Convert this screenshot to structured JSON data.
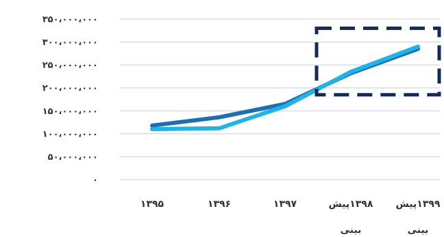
{
  "chart_data": {
    "type": "line",
    "title": "",
    "xlabel": "",
    "ylabel": "",
    "categories": [
      "۱۳۹۵",
      "۱۳۹۶",
      "۱۳۹۷",
      "۱۳۹۸پیش بینی",
      "۱۳۹۹پیش بینی"
    ],
    "category_lines": [
      [
        "۱۳۹۵"
      ],
      [
        "۱۳۹۶"
      ],
      [
        "۱۳۹۷"
      ],
      [
        "۱۳۹۸پیش",
        "بینی"
      ],
      [
        "۱۳۹۹پیش",
        "بینی"
      ]
    ],
    "ylim": [
      0,
      350000000
    ],
    "yticks": [
      0,
      50000000,
      100000000,
      150000000,
      200000000,
      250000000,
      300000000,
      350000000
    ],
    "ytick_labels": [
      "۰",
      "۵۰،۰۰۰،۰۰۰",
      "۱۰۰،۰۰۰،۰۰۰",
      "۱۵۰،۰۰۰،۰۰۰",
      "۲۰۰،۰۰۰،۰۰۰",
      "۲۵۰،۰۰۰،۰۰۰",
      "۳۰۰،۰۰۰،۰۰۰",
      "۳۵۰،۰۰۰،۰۰۰"
    ],
    "grid": true,
    "series": [
      {
        "color": "#1a6fb5",
        "values": [
          118000000,
          136000000,
          165000000,
          232000000,
          285000000
        ]
      },
      {
        "color": "#1eb4ea",
        "values": [
          110000000,
          112000000,
          160000000,
          235000000,
          290000000
        ]
      }
    ],
    "highlight": {
      "shape": "dashed-rectangle",
      "color": "#162a58",
      "x_from_category": 3,
      "x_to_category": 4,
      "y_range": [
        185000000,
        330000000
      ]
    }
  }
}
